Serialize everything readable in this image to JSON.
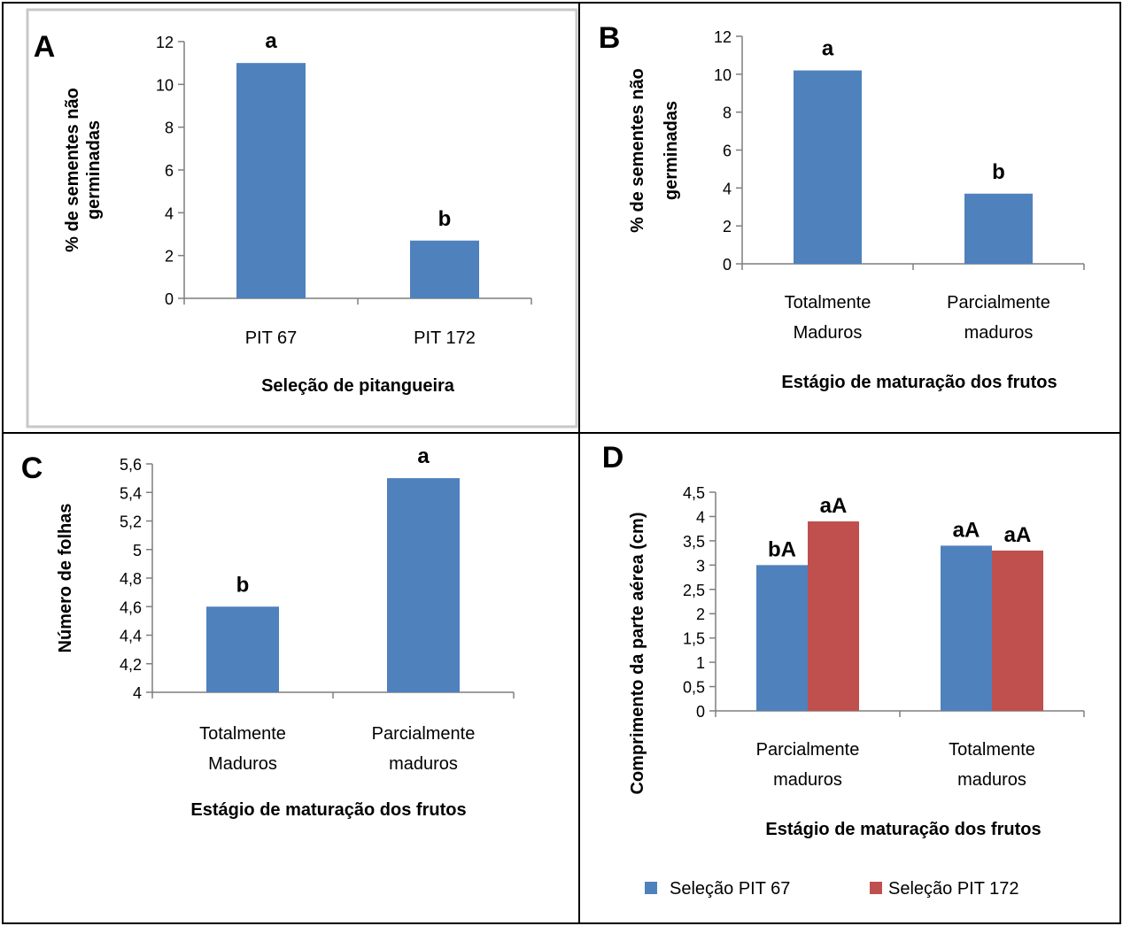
{
  "colors": {
    "series_blue": "#4F81BD",
    "series_red": "#C0504D",
    "panel_a_border": "#C8C8C8"
  },
  "chart_data": [
    {
      "panel": "A",
      "type": "bar",
      "categories": [
        [
          "PIT 67"
        ],
        [
          "PIT 172"
        ]
      ],
      "values": [
        11.0,
        2.7
      ],
      "significance": [
        "a",
        "b"
      ],
      "ylabel": [
        "% de sementes não",
        "germinadas"
      ],
      "xlabel": "Seleção de pitangueira",
      "ylim": [
        0,
        12
      ],
      "yticks": [
        "0",
        "2",
        "4",
        "6",
        "8",
        "10",
        "12"
      ],
      "grid": false,
      "color": "#4F81BD"
    },
    {
      "panel": "B",
      "type": "bar",
      "categories": [
        [
          "Totalmente",
          "Maduros"
        ],
        [
          "Parcialmente",
          "maduros"
        ]
      ],
      "values": [
        10.2,
        3.7
      ],
      "significance": [
        "a",
        "b"
      ],
      "ylabel": [
        "% de sementes não",
        "germinadas"
      ],
      "xlabel": "Estágio de maturação dos frutos",
      "ylim": [
        0,
        12
      ],
      "yticks": [
        "0",
        "2",
        "4",
        "6",
        "8",
        "10",
        "12"
      ],
      "grid": false,
      "color": "#4F81BD"
    },
    {
      "panel": "C",
      "type": "bar",
      "categories": [
        [
          "Totalmente",
          "Maduros"
        ],
        [
          "Parcialmente",
          "maduros"
        ]
      ],
      "values": [
        4.6,
        5.5
      ],
      "significance": [
        "b",
        "a"
      ],
      "ylabel": [
        "Número de folhas"
      ],
      "xlabel": "Estágio de maturação dos frutos",
      "ylim": [
        4,
        5.6
      ],
      "yticks": [
        "4",
        "4,2",
        "4,4",
        "4,6",
        "4,8",
        "5",
        "5,2",
        "5,4",
        "5,6"
      ],
      "grid": false,
      "color": "#4F81BD"
    },
    {
      "panel": "D",
      "type": "bar",
      "categories": [
        [
          "Parcialmente",
          "maduros"
        ],
        [
          "Totalmente",
          "maduros"
        ]
      ],
      "series": [
        {
          "name": "Seleção PIT 67",
          "values": [
            3.0,
            3.4
          ],
          "significance": [
            "bA",
            "aA"
          ],
          "color": "#4F81BD"
        },
        {
          "name": "Seleção PIT 172",
          "values": [
            3.9,
            3.3
          ],
          "significance": [
            "aA",
            "aA"
          ],
          "color": "#C0504D"
        }
      ],
      "ylabel": [
        "Comprimento da parte aérea (cm)"
      ],
      "xlabel": "Estágio de maturação dos frutos",
      "ylim": [
        0,
        4.5
      ],
      "yticks": [
        "0",
        "0,5",
        "1",
        "1,5",
        "2",
        "2,5",
        "3",
        "3,5",
        "4",
        "4,5"
      ],
      "legend_position": "bottom",
      "grid": false
    }
  ]
}
